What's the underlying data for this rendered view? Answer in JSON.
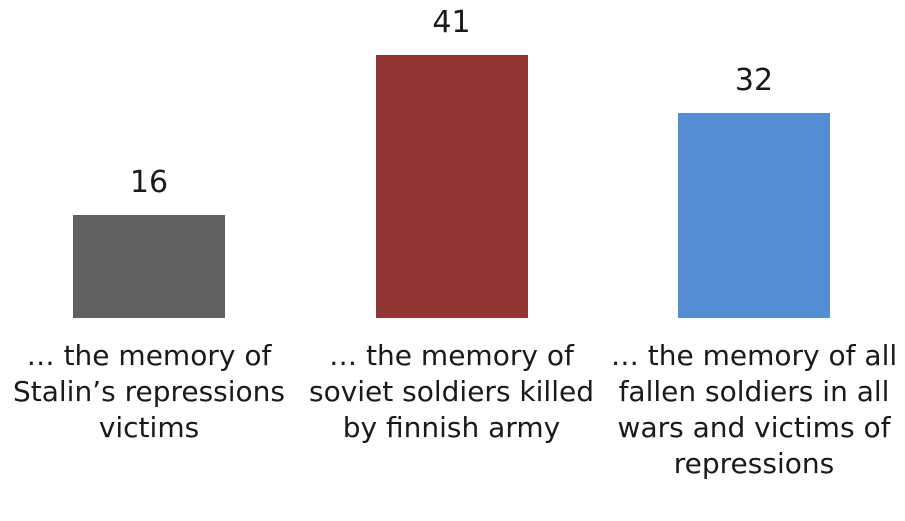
{
  "chart_data": {
    "type": "bar",
    "categories": [
      "… the memory of Stalin’s repressions victims",
      "… the memory of soviet soldiers killed by finnish army",
      "… the memory of all fallen soldiers in all wars and victims of repressions"
    ],
    "values": [
      16,
      41,
      32
    ],
    "colors": [
      "#606060",
      "#943535",
      "#548dd4"
    ]
  }
}
